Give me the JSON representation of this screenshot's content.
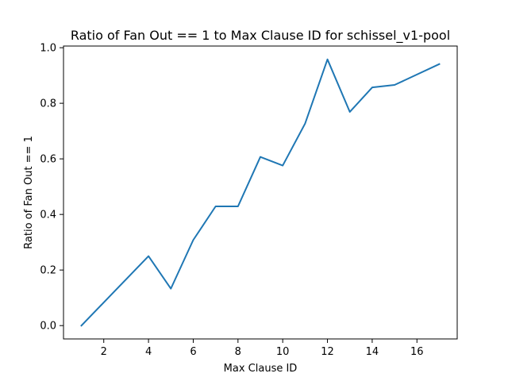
{
  "chart_data": {
    "type": "line",
    "title": "Ratio of Fan Out == 1 to Max Clause ID for schissel_v1-pool",
    "xlabel": "Max Clause ID",
    "ylabel": "Ratio of Fan Out == 1",
    "x": [
      1,
      4,
      5,
      6,
      7,
      8,
      9,
      10,
      11,
      12,
      13,
      14,
      15,
      17
    ],
    "series": [
      {
        "values": [
          0.0,
          0.25,
          0.133,
          0.308,
          0.429,
          0.429,
          0.607,
          0.576,
          0.727,
          0.958,
          0.769,
          0.857,
          0.866,
          0.941
        ],
        "color": "#1f77b4"
      }
    ],
    "xlim": [
      0.2,
      17.8
    ],
    "ylim": [
      -0.048,
      1.006
    ],
    "x_ticks": [
      2,
      4,
      6,
      8,
      10,
      12,
      14,
      16
    ],
    "y_ticks": [
      0.0,
      0.2,
      0.4,
      0.6,
      0.8,
      1.0
    ],
    "x_tick_labels": [
      "2",
      "4",
      "6",
      "8",
      "10",
      "12",
      "14",
      "16"
    ],
    "y_tick_labels": [
      "0.0",
      "0.2",
      "0.4",
      "0.6",
      "0.8",
      "1.0"
    ],
    "grid": false,
    "legend": "none"
  }
}
